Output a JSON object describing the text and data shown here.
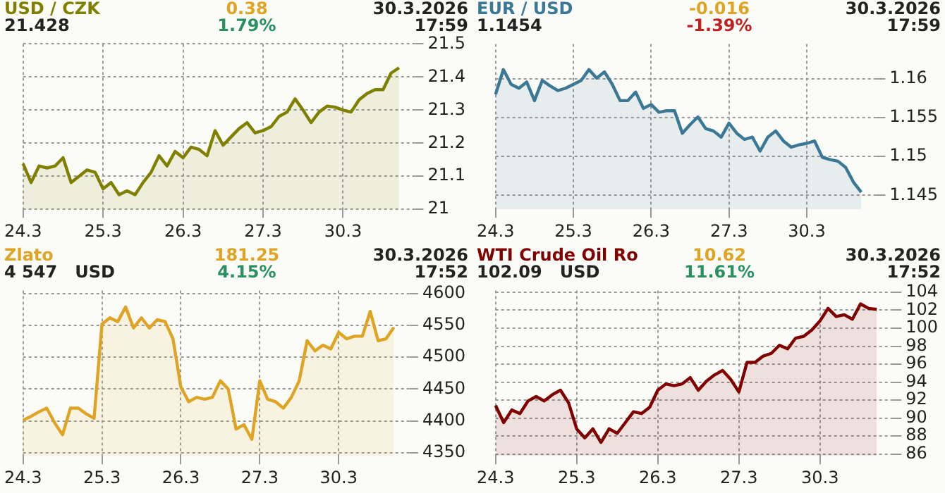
{
  "chart_data": [
    {
      "type": "area",
      "title": "USD / CZK",
      "subtitle": "21.428",
      "annotations": [
        "0.38",
        "1.79%",
        "30.3.2026",
        "17:59"
      ],
      "categories": [
        "24.3",
        null,
        null,
        null,
        null,
        null,
        null,
        null,
        null,
        null,
        "25.3",
        null,
        null,
        null,
        null,
        null,
        null,
        null,
        null,
        null,
        "26.3",
        null,
        null,
        null,
        null,
        null,
        null,
        null,
        null,
        null,
        "27.3",
        null,
        null,
        null,
        null,
        null,
        null,
        null,
        null,
        null,
        "30.3",
        null,
        null,
        null,
        null,
        null,
        null,
        null,
        null,
        null
      ],
      "ylim": [
        21,
        21.5
      ],
      "yticks": [
        21,
        21.1,
        21.2,
        21.3,
        21.4,
        21.5
      ],
      "grid": true,
      "legend": false,
      "series": [
        {
          "color": "#808000",
          "values": [
            21.138,
            21.081,
            21.131,
            21.125,
            21.131,
            21.156,
            21.081,
            21.1,
            21.119,
            21.112,
            21.062,
            21.081,
            21.044,
            21.056,
            21.044,
            21.081,
            21.112,
            21.162,
            21.131,
            21.175,
            21.156,
            21.188,
            21.181,
            21.162,
            21.238,
            21.194,
            21.219,
            21.244,
            21.262,
            21.231,
            21.238,
            21.25,
            21.281,
            21.294,
            21.334,
            21.3,
            21.262,
            21.294,
            21.312,
            21.309,
            21.3,
            21.294,
            21.331,
            21.35,
            21.362,
            21.362,
            21.412,
            21.428,
            null,
            null
          ]
        }
      ]
    },
    {
      "type": "area",
      "title": "EUR / USD",
      "subtitle": "1.1454",
      "annotations": [
        "-0.016",
        "-1.39%",
        "30.3.2026",
        "17:59"
      ],
      "categories": [
        "24.3",
        null,
        null,
        null,
        null,
        null,
        null,
        null,
        null,
        null,
        "25.3",
        null,
        null,
        null,
        null,
        null,
        null,
        null,
        null,
        null,
        "26.3",
        null,
        null,
        null,
        null,
        null,
        null,
        null,
        null,
        null,
        "27.3",
        null,
        null,
        null,
        null,
        null,
        null,
        null,
        null,
        null,
        "30.3",
        null,
        null,
        null,
        null,
        null,
        null,
        null,
        null,
        null
      ],
      "ylim": [
        1.1432,
        1.1645
      ],
      "yticks": [
        1.145,
        1.15,
        1.155,
        1.16
      ],
      "grid": true,
      "legend": false,
      "series": [
        {
          "color": "#3b7896",
          "values": [
            1.158,
            1.1612,
            1.1593,
            1.1588,
            1.1596,
            1.1572,
            1.1598,
            1.1591,
            1.1585,
            1.1588,
            1.1593,
            1.1598,
            1.1612,
            1.1601,
            1.1609,
            1.1593,
            1.1572,
            1.1572,
            1.1583,
            1.1562,
            1.1567,
            1.1557,
            1.1559,
            1.1559,
            1.153,
            1.1541,
            1.1551,
            1.1536,
            1.1533,
            1.1525,
            1.1543,
            1.153,
            1.1522,
            1.1525,
            1.1507,
            1.1525,
            1.1533,
            1.152,
            1.1512,
            1.1515,
            1.1517,
            1.152,
            1.1499,
            1.1496,
            1.1494,
            1.1486,
            1.1467,
            1.1454,
            null,
            null
          ]
        }
      ]
    },
    {
      "type": "area",
      "title": "Zlato",
      "subtitle": "4 547   USD",
      "annotations": [
        "181.25",
        "4.15%",
        "30.3.2026",
        "17:52"
      ],
      "categories": [
        "24.3",
        null,
        null,
        null,
        null,
        null,
        null,
        null,
        null,
        null,
        "25.3",
        null,
        null,
        null,
        null,
        null,
        null,
        null,
        null,
        null,
        "26.3",
        null,
        null,
        null,
        null,
        null,
        null,
        null,
        null,
        null,
        "27.3",
        null,
        null,
        null,
        null,
        null,
        null,
        null,
        null,
        null,
        "30.3",
        null,
        null,
        null,
        null,
        null,
        null,
        null,
        null,
        null
      ],
      "ylim": [
        4345,
        4605
      ],
      "yticks": [
        4350,
        4400,
        4450,
        4500,
        4550,
        4600
      ],
      "grid": true,
      "legend": false,
      "series": [
        {
          "color": "#e0a424",
          "values": [
            4401,
            4407,
            4414,
            4420,
            4397,
            4378,
            4420,
            4420,
            4411,
            4404,
            4552,
            4562,
            4556,
            4579,
            4546,
            4562,
            4546,
            4559,
            4556,
            4529,
            4453,
            4430,
            4437,
            4434,
            4437,
            4463,
            4450,
            4387,
            4394,
            4371,
            4463,
            4434,
            4430,
            4420,
            4437,
            4463,
            4526,
            4510,
            4519,
            4513,
            4539,
            4529,
            4533,
            4533,
            4572,
            4526,
            4529,
            4547,
            null,
            null
          ]
        }
      ]
    },
    {
      "type": "area",
      "title": "WTI Crude Oil Ro",
      "subtitle": "102.09   USD",
      "annotations": [
        "10.62",
        "11.61%",
        "30.3.2026",
        "17:52"
      ],
      "categories": [
        "24.3",
        null,
        null,
        null,
        null,
        null,
        null,
        null,
        null,
        null,
        "25.3",
        null,
        null,
        null,
        null,
        null,
        null,
        null,
        null,
        null,
        "26.3",
        null,
        null,
        null,
        null,
        null,
        null,
        null,
        null,
        null,
        "27.3",
        null,
        null,
        null,
        null,
        null,
        null,
        null,
        null,
        null,
        "30.3",
        null,
        null,
        null,
        null,
        null,
        null,
        null,
        null,
        null
      ],
      "ylim": [
        85.8,
        104.2
      ],
      "yticks": [
        86,
        88,
        90,
        92,
        94,
        96,
        98,
        100,
        102,
        104
      ],
      "grid": true,
      "legend": false,
      "series": [
        {
          "color": "#800000",
          "values": [
            91.4,
            89.5,
            90.9,
            90.5,
            91.9,
            92.4,
            91.9,
            92.6,
            93.1,
            91.7,
            88.8,
            87.8,
            88.8,
            87.3,
            88.8,
            88.3,
            89.5,
            90.7,
            90.5,
            91.2,
            93.1,
            93.8,
            93.6,
            93.8,
            94.5,
            93.1,
            94.1,
            94.8,
            95.3,
            94.3,
            92.9,
            96.2,
            96.2,
            96.9,
            97.2,
            98.1,
            97.7,
            98.9,
            99.1,
            99.8,
            100.8,
            102.2,
            101.3,
            101.5,
            101,
            102.7,
            102.2,
            102.1,
            null,
            null
          ]
        }
      ]
    }
  ]
}
